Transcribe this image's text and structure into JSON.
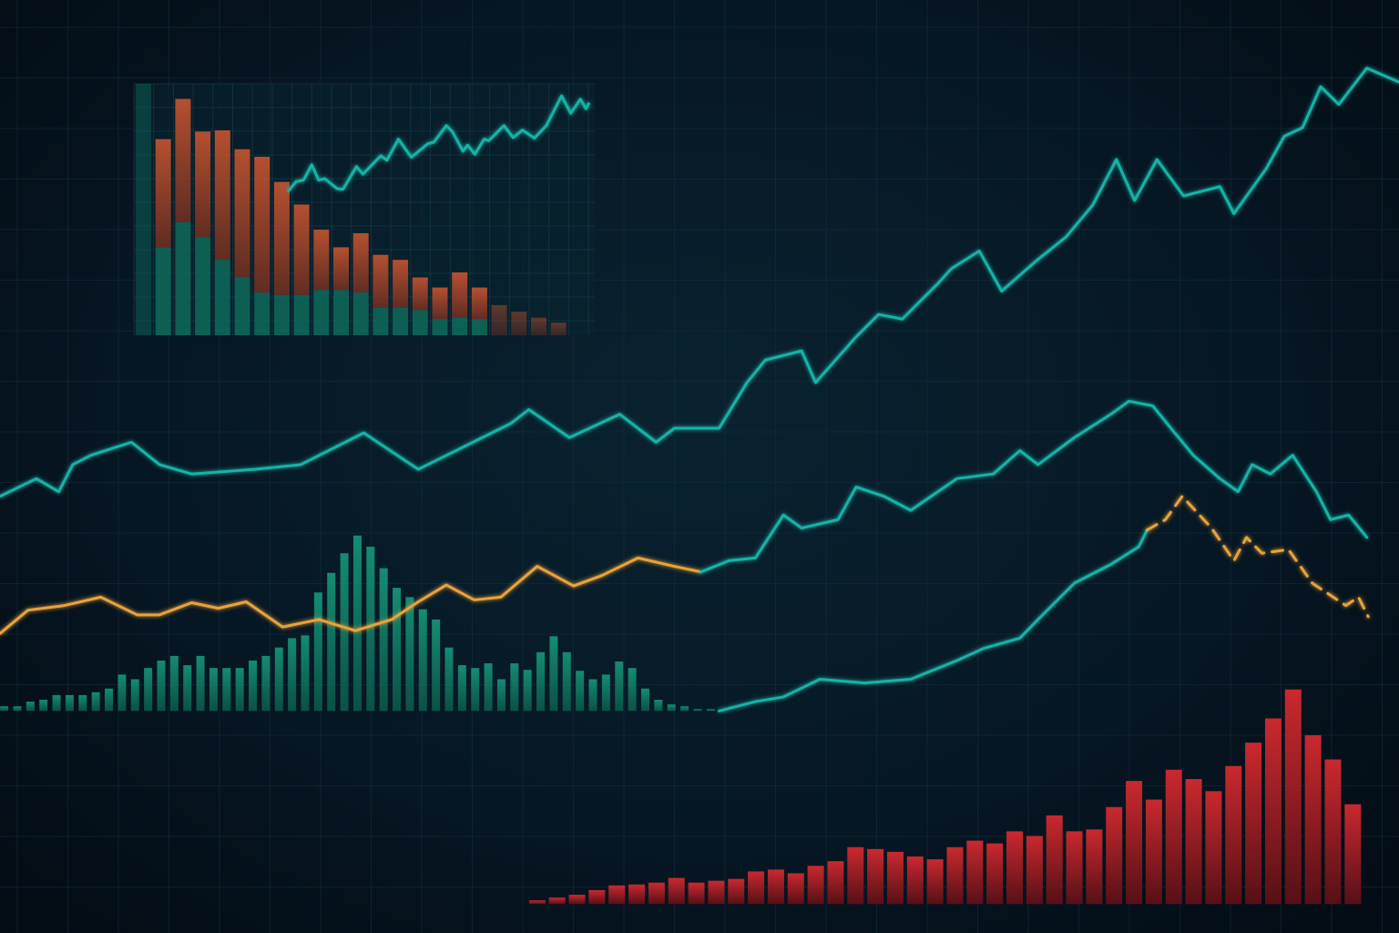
{
  "chart_data": [
    {
      "type": "line",
      "xlim": [
        0,
        100
      ],
      "ylim": [
        0,
        100
      ],
      "grid": true,
      "colors": {
        "teal": "#17b3a6",
        "orange": "#e9a23b"
      },
      "series": [
        {
          "style": "solid",
          "color": "#17b3a6",
          "x": [
            0,
            2.6,
            4.2,
            5.2,
            6.5,
            9.4,
            11.4,
            13.7,
            18.2,
            21.5,
            26,
            29.9,
            32.6,
            36.5,
            37.8,
            40.7,
            44.3,
            46.9,
            48.2,
            51.4,
            53.4,
            54.7,
            57.3,
            58.3,
            61.2,
            62.8,
            64.5,
            67.1,
            68,
            70,
            71.6,
            74.2,
            76.2,
            78.1,
            79.8,
            81.1,
            82.7,
            84.6,
            87.2,
            88.2,
            90.5,
            91.8,
            93.1,
            94.4,
            95.7,
            97.7,
            100
          ],
          "y": [
            46.8,
            48.7,
            47.3,
            50.2,
            51.2,
            52.6,
            50.2,
            49.2,
            49.7,
            50.2,
            53.6,
            49.7,
            51.7,
            54.6,
            56.1,
            53.1,
            55.6,
            52.6,
            54.1,
            54.1,
            59,
            61.4,
            62.4,
            59,
            63.9,
            66.3,
            65.8,
            69.7,
            71.2,
            73.1,
            68.8,
            72.2,
            74.6,
            78,
            82.9,
            78.5,
            82.9,
            79,
            80,
            77.1,
            81.9,
            85.4,
            86.3,
            90.7,
            88.8,
            92.7,
            91.2
          ]
        },
        {
          "style": "solid",
          "color": "#e9a23b",
          "x": [
            0,
            2,
            4.6,
            7.2,
            9.8,
            11.4,
            13.7,
            15.6,
            17.6,
            20.2,
            22.8,
            25.4,
            28,
            29.9,
            31.9,
            33.9,
            35.8,
            38.4,
            41,
            43,
            45.6,
            48.2,
            50.1
          ],
          "y": [
            32.1,
            34.6,
            35.1,
            36,
            34.1,
            34.1,
            35.4,
            34.8,
            35.5,
            32.8,
            33.6,
            32.4,
            33.6,
            35.5,
            37.3,
            35.7,
            36,
            39.3,
            37.2,
            38.3,
            40.2,
            39.3,
            38.7
          ]
        },
        {
          "style": "solid",
          "color": "#17b3a6",
          "x": [
            50.1,
            52.1,
            54,
            56,
            57.3,
            59.9,
            61.2,
            63.2,
            65.1,
            68.4,
            71,
            72.9,
            74.2,
            76.8,
            79.4,
            80.7,
            82.4,
            83.7,
            85.3,
            87.2,
            88.5,
            89.5,
            90.8,
            92.4,
            94.1,
            95.1,
            96.4,
            97.7
          ],
          "y": [
            38.7,
            39.9,
            40.2,
            44.8,
            43.4,
            44.3,
            47.8,
            46.8,
            45.3,
            48.7,
            49.2,
            51.7,
            50.2,
            53.1,
            55.6,
            57,
            56.5,
            54.1,
            51.2,
            48.7,
            47.3,
            50.2,
            49.2,
            51.2,
            47.3,
            44.3,
            44.8,
            42.4
          ]
        },
        {
          "style": "solid",
          "color": "#17b3a6",
          "x": [
            51.4,
            54,
            56,
            58.6,
            61.8,
            65.1,
            68.4,
            70.3,
            72.9,
            74.2,
            76.8,
            79.4,
            81.4,
            82
          ],
          "y": [
            23.8,
            24.8,
            25.3,
            27.2,
            26.8,
            27.2,
            29.2,
            30.5,
            31.6,
            33.6,
            37.5,
            39.5,
            41.4,
            43.2
          ]
        },
        {
          "style": "dashed",
          "color": "#e9a23b",
          "x": [
            82,
            83.3,
            84.5,
            86.6,
            88.2,
            89.1,
            90.2,
            92.1,
            93.8,
            96.2,
            97.1,
            97.8
          ],
          "y": [
            43.2,
            44.3,
            46.8,
            43.4,
            39.9,
            42.4,
            40.7,
            41.1,
            37.5,
            35.1,
            36,
            33.9
          ]
        }
      ]
    },
    {
      "type": "bar",
      "color": "#138a70",
      "baseline": 23.8,
      "x_range": [
        0.3,
        50.8
      ],
      "values": [
        0.5,
        0.5,
        1,
        1.2,
        1.7,
        1.7,
        1.7,
        2,
        2.4,
        3.9,
        3.4,
        4.6,
        5.4,
        5.9,
        4.9,
        5.9,
        4.6,
        4.6,
        4.6,
        5.4,
        5.9,
        6.8,
        7.8,
        8.1,
        12.7,
        14.8,
        16.9,
        18.8,
        17.6,
        15.3,
        13.2,
        12.2,
        10.9,
        9.8,
        6.8,
        4.9,
        4.6,
        5.1,
        3.4,
        5.1,
        4.4,
        6.3,
        8,
        6.3,
        4.3,
        3.4,
        3.9,
        5.3,
        4.6,
        2.4,
        1.2,
        0.7,
        0.5,
        0.2,
        0.2
      ]
    },
    {
      "type": "bar",
      "color": "#c0262b",
      "baseline": 3.1,
      "x_range": [
        38.4,
        96.7
      ],
      "values": [
        0.4,
        0.7,
        1,
        1.5,
        2,
        2.1,
        2.3,
        2.8,
        2.3,
        2.5,
        2.7,
        3.5,
        3.7,
        3.3,
        4.1,
        4.6,
        6.1,
        5.9,
        5.6,
        5.1,
        4.8,
        6.1,
        6.8,
        6.5,
        7.8,
        7.3,
        9.5,
        7.8,
        8,
        10.4,
        13.2,
        11.2,
        14.4,
        13.4,
        12.1,
        14.8,
        17.3,
        19.9,
        23,
        18.1,
        15.5,
        10.7
      ]
    },
    {
      "type": "bar",
      "stacked": true,
      "inset": true,
      "xlim": [
        0,
        100
      ],
      "ylim": [
        0,
        100
      ],
      "colors": {
        "lower": "#0e6b5c",
        "upper": "#c4502e"
      },
      "bars": [
        {
          "lower": 100,
          "total": 100
        },
        {
          "lower": 35,
          "total": 78
        },
        {
          "lower": 45,
          "total": 94
        },
        {
          "lower": 39,
          "total": 81
        },
        {
          "lower": 30,
          "total": 81.5
        },
        {
          "lower": 23,
          "total": 74
        },
        {
          "lower": 17,
          "total": 71
        },
        {
          "lower": 16,
          "total": 61
        },
        {
          "lower": 16,
          "total": 52
        },
        {
          "lower": 18,
          "total": 42
        },
        {
          "lower": 18,
          "total": 35
        },
        {
          "lower": 17,
          "total": 40.6
        },
        {
          "lower": 11,
          "total": 32
        },
        {
          "lower": 11,
          "total": 30
        },
        {
          "lower": 10,
          "total": 23
        },
        {
          "lower": 6.5,
          "total": 19
        },
        {
          "lower": 7,
          "total": 25
        },
        {
          "lower": 6.5,
          "total": 19
        },
        {
          "lower": 0,
          "total": 12
        },
        {
          "lower": 0,
          "total": 9.4
        },
        {
          "lower": 0,
          "total": 7
        },
        {
          "lower": 0,
          "total": 5
        }
      ],
      "line": {
        "color": "#17b3a6",
        "x": [
          33.4,
          35.2,
          36.8,
          38.6,
          40.1,
          41.4,
          44.1,
          45.4,
          48.3,
          49.7,
          51.3,
          53.6,
          54.9,
          57.4,
          60.2,
          63.8,
          65.1,
          67.8,
          69.1,
          71.4,
          72.4,
          74,
          76,
          77,
          80.3,
          82.3,
          84.3,
          86.9,
          89.5,
          92.8,
          94.8,
          96.9,
          98.1,
          98.8
        ],
        "y": [
          57.1,
          61.1,
          61.7,
          67.8,
          61.7,
          62.3,
          58.3,
          58.1,
          67.1,
          64.1,
          67.1,
          71.4,
          69.6,
          78,
          70.8,
          76.2,
          76.8,
          83.4,
          81,
          73.2,
          75.6,
          72,
          78,
          77.4,
          83.4,
          78.6,
          81.6,
          78.4,
          83.4,
          95.2,
          88.3,
          93.9,
          90.1,
          92.5
        ]
      }
    }
  ]
}
